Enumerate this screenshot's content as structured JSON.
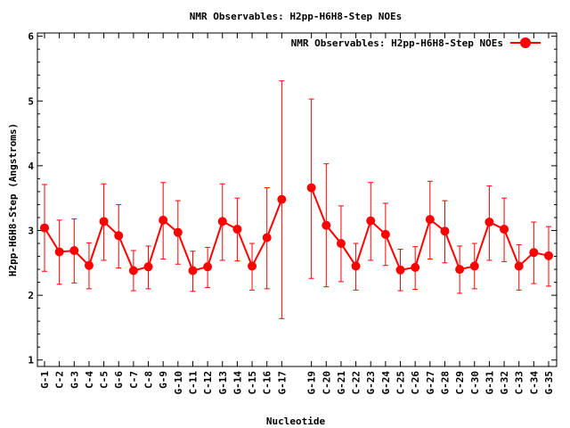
{
  "chart_data": {
    "type": "line",
    "title": "NMR Observables: H2pp-H6H8-Step NOEs",
    "xlabel": "Nucleotide",
    "ylabel": "H2pp-H6H8-Step (Angstroms)",
    "ylim": [
      0.9,
      6.05
    ],
    "yticks": [
      1,
      2,
      3,
      4,
      5,
      6
    ],
    "grid": false,
    "legend_position": "top-right",
    "series_color": "#ff0000",
    "categories": [
      "G-1",
      "C-2",
      "G-3",
      "C-4",
      "C-5",
      "G-6",
      "C-7",
      "C-8",
      "G-9",
      "G-10",
      "C-11",
      "C-12",
      "G-13",
      "G-14",
      "C-15",
      "C-16",
      "G-17",
      "",
      "G-19",
      "C-20",
      "G-21",
      "C-22",
      "G-23",
      "G-24",
      "C-25",
      "C-26",
      "G-27",
      "G-28",
      "C-29",
      "C-30",
      "G-31",
      "G-32",
      "C-33",
      "C-34",
      "G-35"
    ],
    "series": [
      {
        "name": "NMR Observables: H2pp-H6H8-Step NOEs",
        "values": [
          3.04,
          2.67,
          2.69,
          2.46,
          3.14,
          2.92,
          2.38,
          2.44,
          3.16,
          2.97,
          2.38,
          2.44,
          3.14,
          3.02,
          2.45,
          2.89,
          3.48,
          null,
          3.66,
          3.08,
          2.8,
          2.45,
          3.15,
          2.94,
          2.39,
          2.43,
          3.17,
          2.99,
          2.4,
          2.45,
          3.13,
          3.02,
          2.45,
          2.66,
          2.61
        ],
        "err_high": [
          3.71,
          3.16,
          3.18,
          2.81,
          3.72,
          3.4,
          2.69,
          2.76,
          3.74,
          3.46,
          2.68,
          2.74,
          3.72,
          3.5,
          2.8,
          3.66,
          5.31,
          null,
          5.03,
          4.03,
          3.38,
          2.8,
          3.74,
          3.42,
          2.71,
          2.75,
          3.76,
          3.46,
          2.76,
          2.8,
          3.69,
          3.5,
          2.78,
          3.13,
          3.06
        ],
        "err_low": [
          2.37,
          2.17,
          2.19,
          2.1,
          2.54,
          2.42,
          2.07,
          2.1,
          2.56,
          2.48,
          2.06,
          2.12,
          2.54,
          2.53,
          2.08,
          2.1,
          1.64,
          null,
          2.26,
          2.13,
          2.21,
          2.08,
          2.54,
          2.46,
          2.07,
          2.09,
          2.56,
          2.5,
          2.03,
          2.1,
          2.54,
          2.52,
          2.08,
          2.18,
          2.14
        ]
      }
    ]
  }
}
